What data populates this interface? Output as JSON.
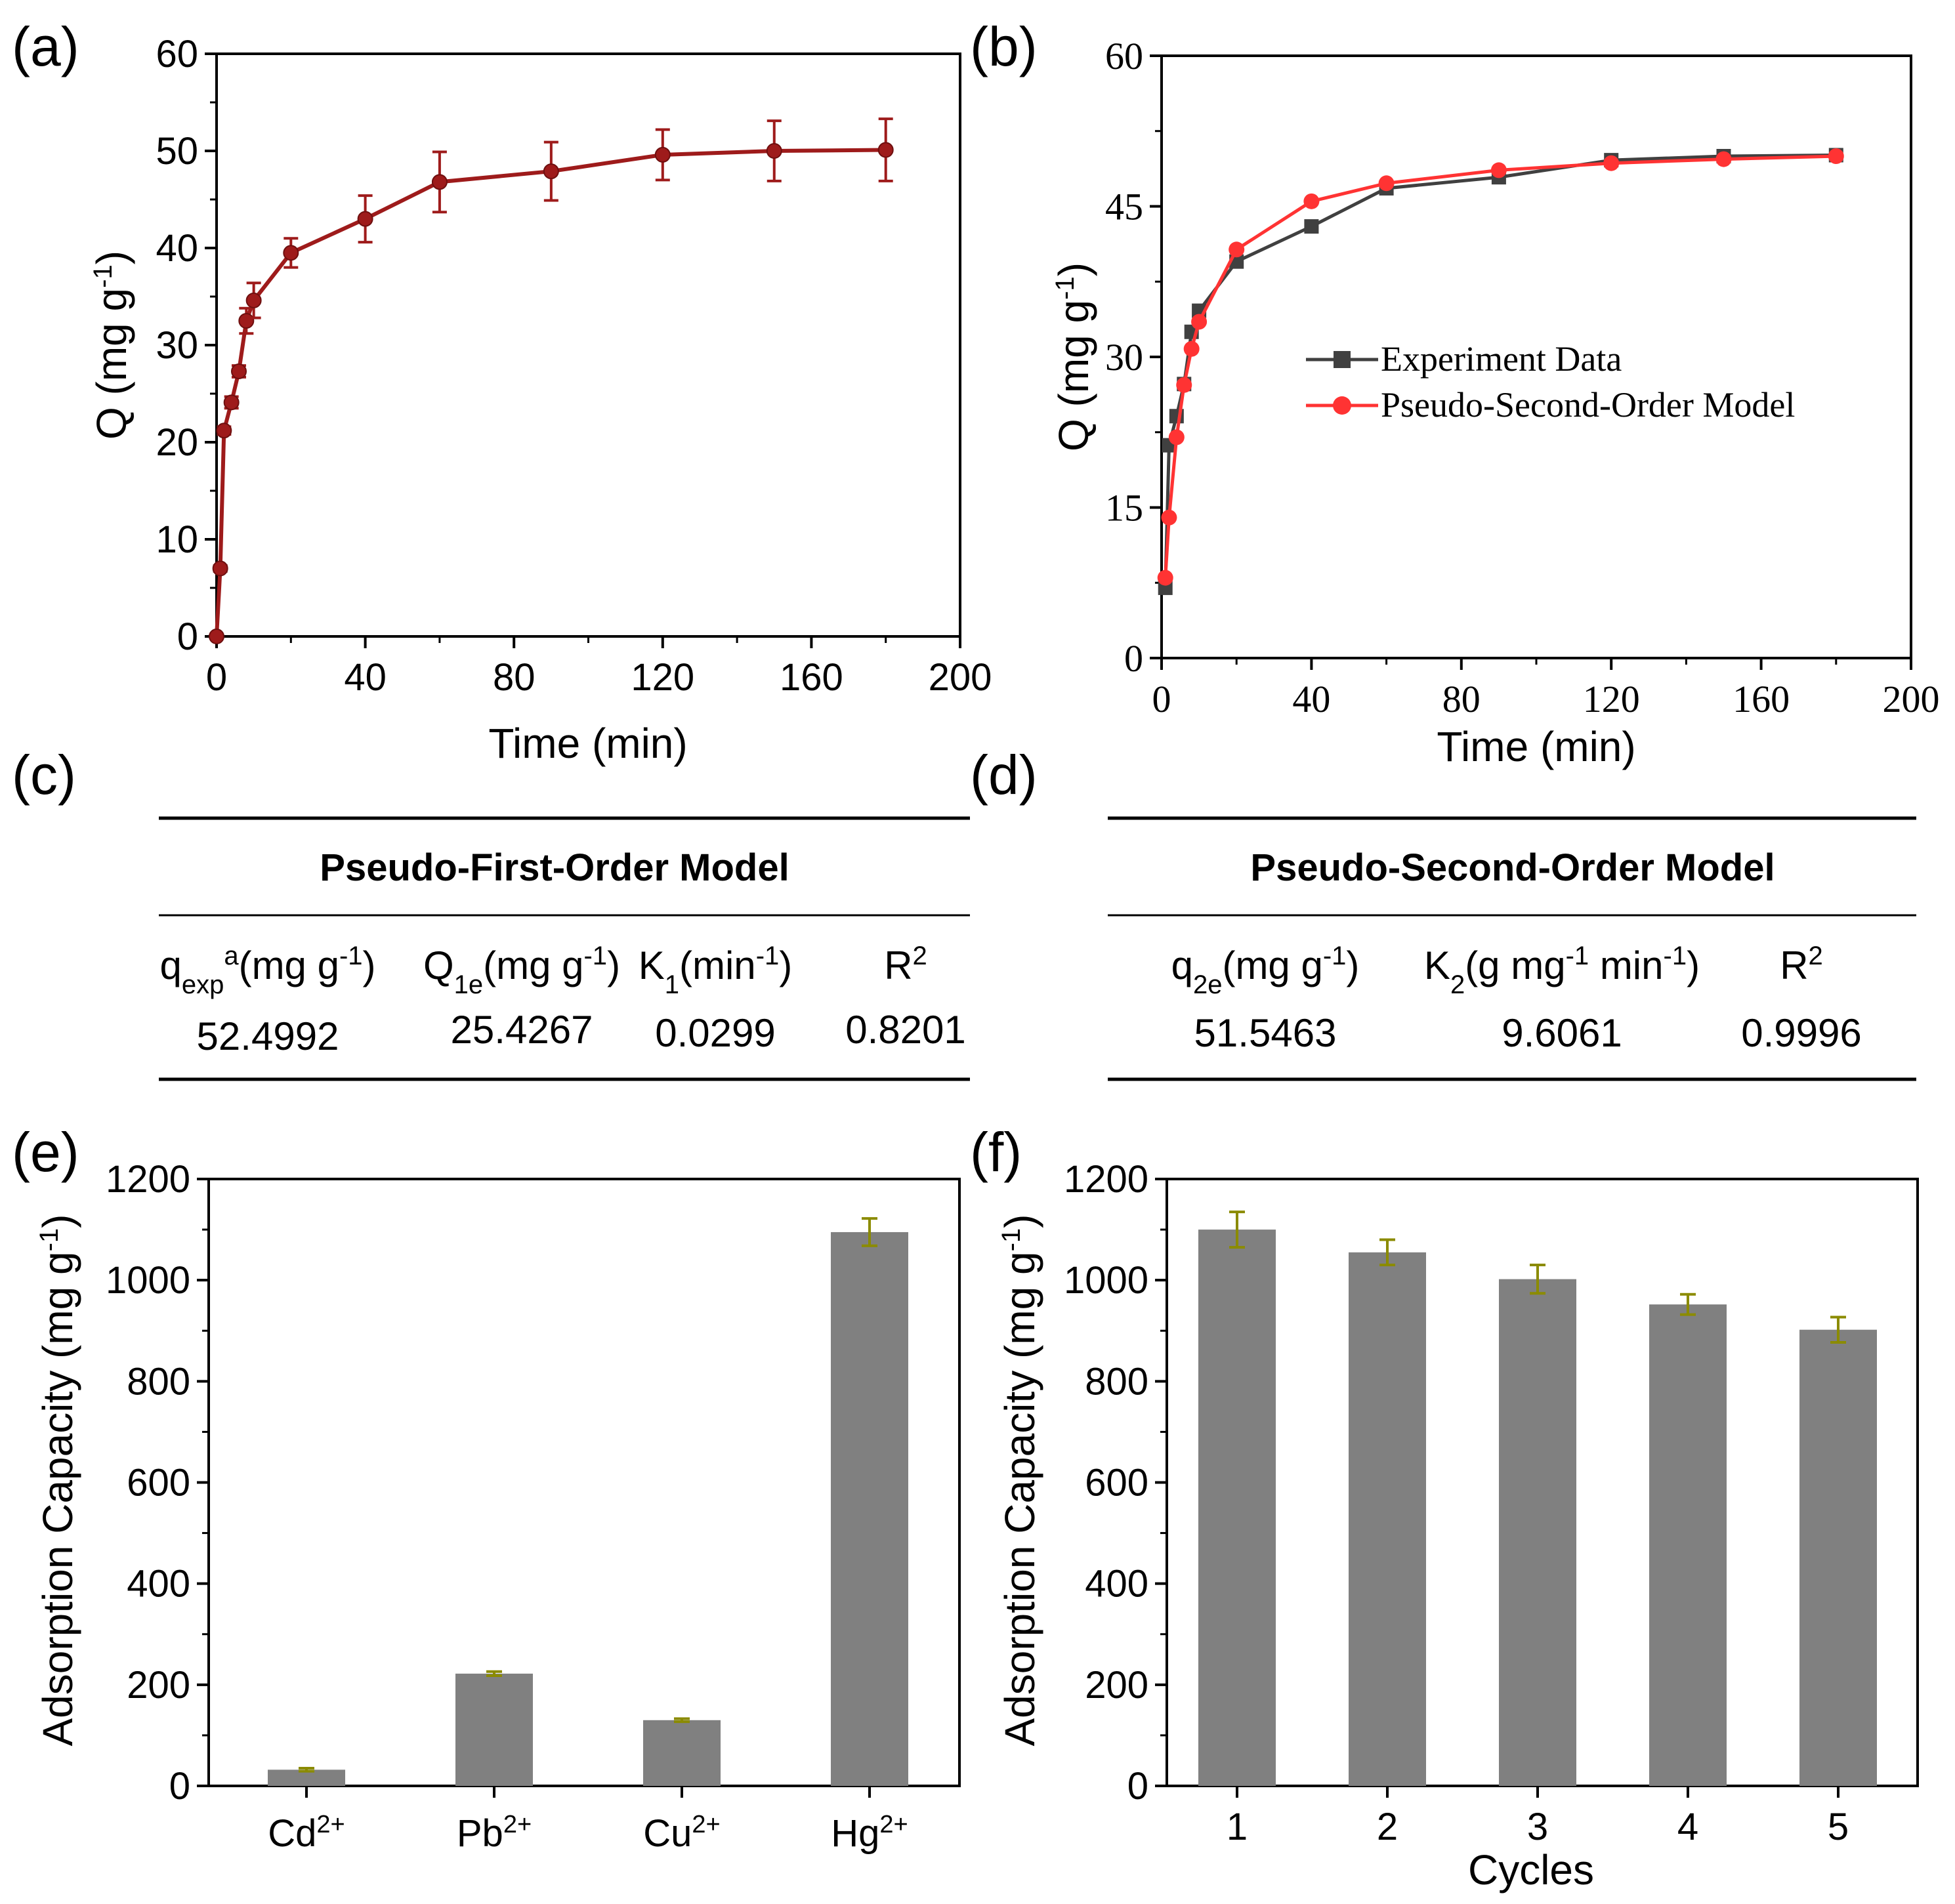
{
  "colors": {
    "panel_a_line": "#9e1b1b",
    "series_experiment": "#404040",
    "series_model": "#ff3333",
    "bar_fill": "#808080",
    "error_bar": "#8b8b00"
  },
  "chart_data": [
    {
      "id": "a",
      "panel_label": "(a)",
      "type": "line",
      "title": "",
      "xlabel": "Time (min)",
      "ylabel": "Q (mg g",
      "ylabel_sup": "-1",
      "ylabel_close": ")",
      "xlim": [
        0,
        200
      ],
      "ylim": [
        0,
        60
      ],
      "xticks": [
        "0",
        "40",
        "80",
        "120",
        "160",
        "200"
      ],
      "yticks": [
        "0",
        "10",
        "20",
        "30",
        "40",
        "50",
        "60"
      ],
      "series": [
        {
          "name": "Q",
          "x": [
            0,
            1,
            2,
            4,
            6,
            8,
            10,
            20,
            40,
            60,
            90,
            120,
            150,
            180
          ],
          "y": [
            0,
            7.0,
            21.2,
            24.1,
            27.3,
            32.5,
            34.6,
            39.5,
            43.0,
            46.8,
            47.9,
            49.6,
            50.0,
            50.1
          ],
          "error": [
            0,
            0.3,
            0.4,
            0.6,
            0.6,
            1.3,
            1.8,
            1.5,
            2.4,
            3.1,
            3.0,
            2.6,
            3.1,
            3.2
          ]
        }
      ]
    },
    {
      "id": "b",
      "panel_label": "(b)",
      "type": "line",
      "title": "",
      "xlabel": "Time (min)",
      "ylabel": "Q (mg g",
      "ylabel_sup": "-1",
      "ylabel_close": ")",
      "xlim": [
        0,
        200
      ],
      "ylim": [
        0,
        60
      ],
      "xticks": [
        "0",
        "40",
        "80",
        "120",
        "160",
        "200"
      ],
      "yticks": [
        "0",
        "15",
        "30",
        "45",
        "60"
      ],
      "legend_position": "center-right",
      "series": [
        {
          "name": "Experiment Data",
          "x": [
            1,
            2,
            4,
            6,
            8,
            10,
            20,
            40,
            60,
            90,
            120,
            150,
            180
          ],
          "y": [
            7.0,
            21.2,
            24.1,
            27.3,
            32.5,
            34.6,
            39.5,
            43.0,
            46.8,
            47.9,
            49.6,
            50.0,
            50.1
          ]
        },
        {
          "name": "Pseudo-Second-Order Model",
          "x": [
            1,
            2,
            4,
            6,
            8,
            10,
            20,
            40,
            60,
            90,
            120,
            150,
            180
          ],
          "y": [
            8.0,
            14.0,
            22.0,
            27.2,
            30.8,
            33.5,
            40.7,
            45.5,
            47.3,
            48.6,
            49.3,
            49.7,
            50.0
          ]
        }
      ]
    },
    {
      "id": "e",
      "panel_label": "(e)",
      "type": "bar",
      "title": "",
      "xlabel": "",
      "ylabel": "Adsorption Capacity (mg g",
      "ylabel_sup": "-1",
      "ylabel_close": ")",
      "ylim": [
        0,
        1200
      ],
      "yticks": [
        "0",
        "200",
        "400",
        "600",
        "800",
        "1000",
        "1200"
      ],
      "categories": [
        {
          "base": "Cd",
          "sup": "2+"
        },
        {
          "base": "Pb",
          "sup": "2+"
        },
        {
          "base": "Cu",
          "sup": "2+"
        },
        {
          "base": "Hg",
          "sup": "2+"
        }
      ],
      "values": [
        32,
        222,
        130,
        1095
      ],
      "errors": [
        3,
        4,
        3,
        27
      ]
    },
    {
      "id": "f",
      "panel_label": "(f)",
      "type": "bar",
      "title": "",
      "xlabel": "Cycles",
      "ylabel": "Adsorption Capacity (mg g",
      "ylabel_sup": "-1",
      "ylabel_close": ")",
      "ylim": [
        0,
        1200
      ],
      "yticks": [
        "0",
        "200",
        "400",
        "600",
        "800",
        "1000",
        "1200"
      ],
      "categories": [
        "1",
        "2",
        "3",
        "4",
        "5"
      ],
      "values": [
        1100,
        1055,
        1002,
        952,
        902
      ],
      "errors": [
        35,
        25,
        28,
        20,
        25
      ]
    }
  ],
  "tables": {
    "c": {
      "panel_label": "(c)",
      "title": "Pseudo-First-Order Model",
      "headers": [
        {
          "base": "q",
          "sub": "exp",
          "sup": "a",
          "rest": "(mg g",
          "sup2": "-1",
          "close": ")"
        },
        {
          "base": "Q",
          "sub": "1e",
          "sup": "",
          "rest": "(mg g",
          "sup2": "-1",
          "close": ")"
        },
        {
          "base": "K",
          "sub": "1",
          "sup": "",
          "rest": "(min",
          "sup2": "-1",
          "close": ")"
        },
        {
          "base": "R",
          "sub": "",
          "sup": "2",
          "rest": "",
          "sup2": "",
          "close": ""
        }
      ],
      "values": [
        "52.4992",
        "25.4267",
        "0.0299",
        "0.8201"
      ]
    },
    "d": {
      "panel_label": "(d)",
      "title": "Pseudo-Second-Order Model",
      "headers": [
        {
          "base": "q",
          "sub": "2e",
          "sup": "",
          "rest": "(mg g",
          "sup2": "-1",
          "close": ")"
        },
        {
          "base": "K",
          "sub": "2",
          "sup": "",
          "rest": "(g mg",
          "sup2": "-1",
          "rest2": " min",
          "sup3": "-1",
          "close": ")"
        },
        {
          "base": "R",
          "sub": "",
          "sup": "2",
          "rest": "",
          "sup2": "",
          "close": ""
        }
      ],
      "values": [
        "51.5463",
        "9.6061",
        "0.9996"
      ]
    }
  }
}
